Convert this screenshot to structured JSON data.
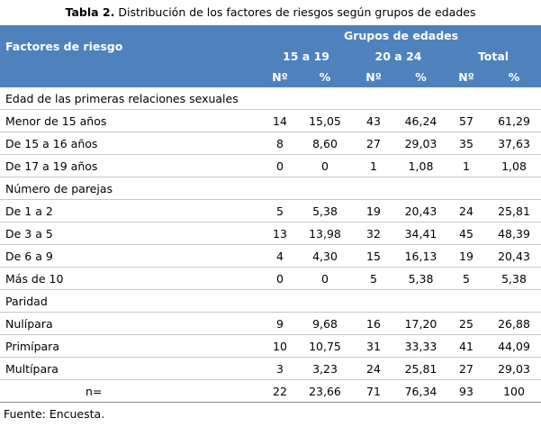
{
  "header": {
    "title_bold": "Tabla 2.",
    "title_rest": "Distribución  de los factores de riesgos según grupos de edades"
  },
  "table": {
    "factor": "Factores de riesgo",
    "group": "Grupos de edades",
    "ranges": [
      "15 a 19",
      "20 a 24",
      "Total"
    ],
    "sub": [
      "Nº",
      "%",
      "Nº",
      "%",
      "Nº",
      "%"
    ],
    "rows": [
      [
        "Edad de las primeras relaciones sexuales"
      ],
      [
        "Menor de 15 años",
        "14",
        "15,05",
        "43",
        "46,24",
        "57",
        "61,29"
      ],
      [
        "De 15 a 16 años",
        "8",
        "8,60",
        "27",
        "29,03",
        "35",
        "37,63"
      ],
      [
        "De 17 a 19 años",
        "0",
        "0",
        "1",
        "1,08",
        "1",
        "1,08"
      ],
      [
        "Número de parejas"
      ],
      [
        "De 1 a 2",
        "5",
        "5,38",
        "19",
        "20,43",
        "24",
        "25,81"
      ],
      [
        "De 3 a 5",
        "13",
        "13,98",
        "32",
        "34,41",
        "45",
        "48,39"
      ],
      [
        "De 6 a 9",
        "4",
        "4,30",
        "15",
        "16,13",
        "19",
        "20,43"
      ],
      [
        "Más de 10",
        "0",
        "0",
        "5",
        "5,38",
        "5",
        "5,38"
      ],
      [
        "Paridad"
      ],
      [
        "Nulípara",
        "9",
        "9,68",
        "16",
        "17,20",
        "25",
        "26,88"
      ],
      [
        "Primípara",
        "10",
        "10,75",
        "31",
        "33,33",
        "41",
        "44,09"
      ],
      [
        "Multípara",
        "3",
        "3,23",
        "24",
        "25,81",
        "27",
        "29,03"
      ],
      [
        "n=",
        "22",
        "23,66",
        "71",
        "76,34",
        "93",
        "100"
      ]
    ]
  },
  "footer": "Fuente: Encuesta."
}
